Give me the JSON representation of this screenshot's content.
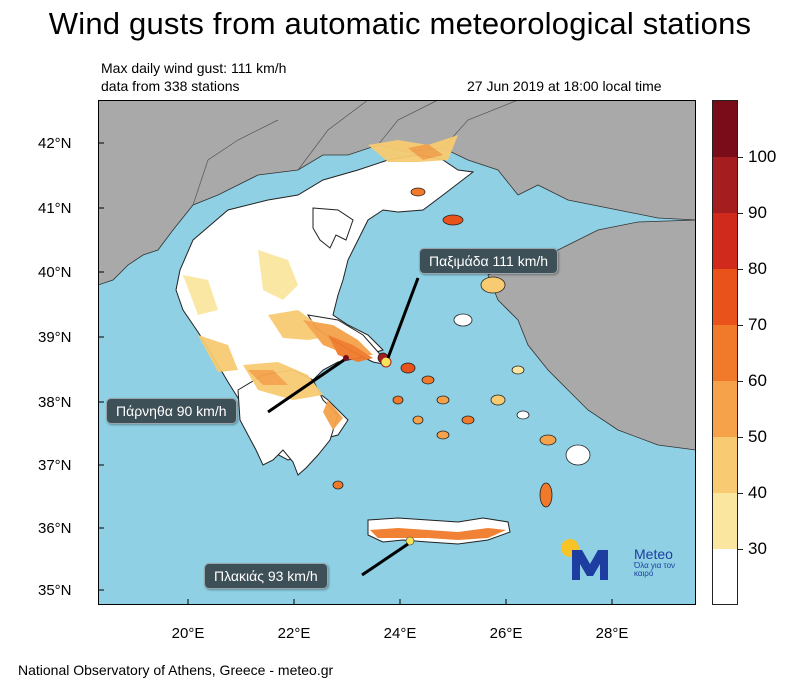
{
  "title": "Wind gusts from automatic meteorological stations",
  "info": {
    "max_gust": "Max daily wind gust: 111 km/h",
    "stations": "data from 338 stations",
    "time": "27 Jun 2019 at 18:00 local time"
  },
  "axes": {
    "lat_labels": [
      "42°N",
      "41°N",
      "40°N",
      "39°N",
      "38°N",
      "37°N",
      "36°N",
      "35°N"
    ],
    "lon_labels": [
      "20°E",
      "22°E",
      "24°E",
      "26°E",
      "28°E"
    ]
  },
  "colorbar": {
    "labels": [
      "100",
      "90",
      "80",
      "70",
      "60",
      "50",
      "40",
      "30"
    ],
    "colors": [
      "#7a0c1a",
      "#a51d1f",
      "#cf2a1c",
      "#e9531b",
      "#f07a2a",
      "#f5a24a",
      "#f8cb72",
      "#fbe6a0",
      "#ffffff"
    ]
  },
  "callouts": {
    "paximada": "Παξιμάδα 111 km/h",
    "parnitha": "Πάρνηθα 90 km/h",
    "plakias": "Πλακιάς 93 km/h"
  },
  "colors": {
    "sea": "#8fd0e4",
    "land_other": "#a9a9a9",
    "greece_land": "#ffffff",
    "callout_bg": "#3d4f57",
    "logo_blue": "#1d3ea0",
    "logo_sun": "#f7c326"
  },
  "logo": {
    "brand": "Meteo",
    "tagline": "Όλα για τον καιρό"
  },
  "footer": "National Observatory of Athens, Greece - meteo.gr"
}
